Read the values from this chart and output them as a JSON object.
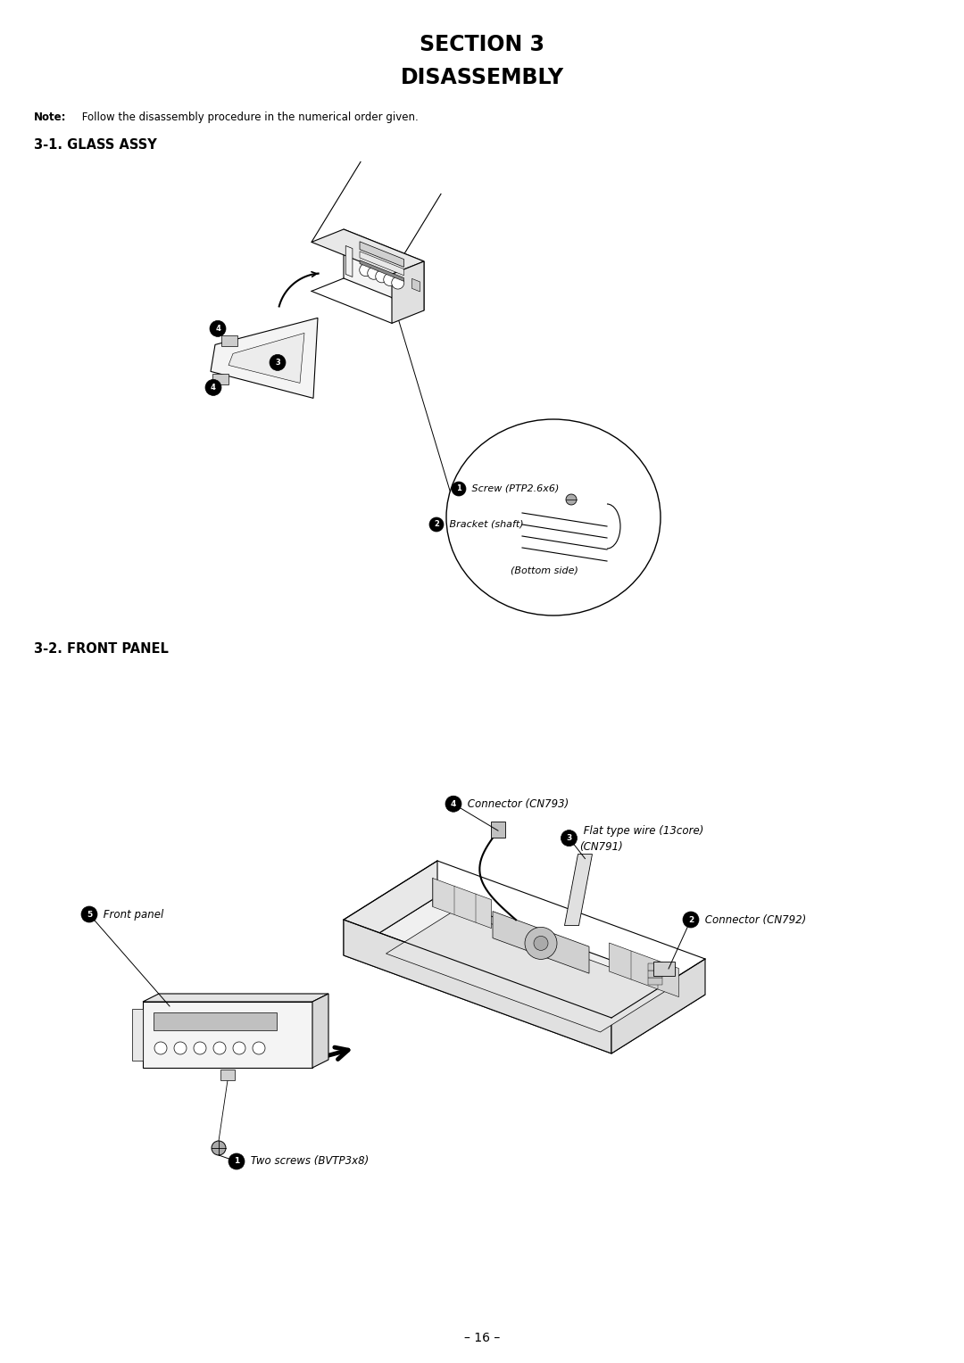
{
  "bg_color": "#ffffff",
  "page_width": 10.8,
  "page_height": 15.28,
  "title_line1": "SECTION 3",
  "title_line2": "DISASSEMBLY",
  "title_fontsize": 17,
  "note_bold": "Note:",
  "note_rest": " Follow the disassembly procedure in the numerical order given.",
  "note_fontsize": 8.5,
  "section1_title": "3-1. GLASS ASSY",
  "section1_fontsize": 10.5,
  "section2_title": "3-2. FRONT PANEL",
  "section2_fontsize": 10.5,
  "page_num": "– 16 –",
  "page_num_fontsize": 10
}
